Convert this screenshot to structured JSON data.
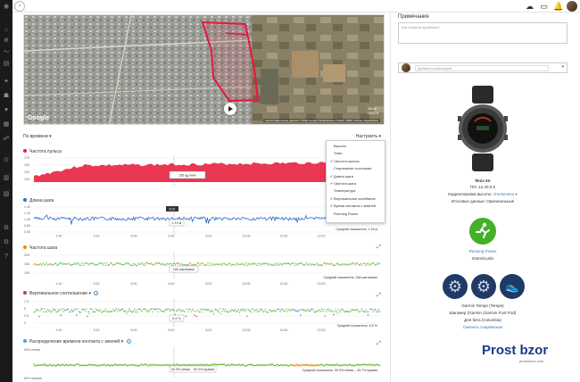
{
  "topbar": {
    "icons": [
      "back-icon",
      "upload-icon",
      "notifications-icon",
      "calendar-icon",
      "user-icon"
    ]
  },
  "sidebar": {
    "icons": [
      "logo-icon",
      "dashboard-icon",
      "activities-icon",
      "insights-icon",
      "reports-icon",
      "health-icon",
      "training-icon",
      "calendar-icon",
      "connections-icon",
      "gear-icon",
      "goals-icon",
      "badges-icon",
      "settings-icon"
    ]
  },
  "map": {
    "google_label": "Google",
    "credit": "Картографические данные © 2018 Google Изображения ©2018, CNES / Airbus, DigitalGlobe",
    "scale_top": "200 м",
    "scale_bottom": "1000 ft"
  },
  "controls": {
    "view_by": "По времени",
    "customize": "Настроить"
  },
  "dropdown": {
    "items": [
      {
        "label": "Высота",
        "checked": false
      },
      {
        "label": "Темп",
        "checked": false
      },
      {
        "label": "Частота пульса",
        "checked": true
      },
      {
        "label": "Спортивное состояние",
        "checked": false
      },
      {
        "label": "Длина шага",
        "checked": true
      },
      {
        "label": "Частота шага",
        "checked": true
      },
      {
        "label": "Температура",
        "checked": false
      },
      {
        "label": "Вертикальное колебание",
        "checked": true
      },
      {
        "label": "Время контакта с землей",
        "checked": true
      },
      {
        "label": "Running Power",
        "checked": false
      }
    ]
  },
  "charts": {
    "heart_rate": {
      "title": "Частота пульса",
      "y_ticks": [
        "175",
        "150",
        "125",
        "100"
      ],
      "tooltip": "156 уд./мин",
      "average": "Средний"
    },
    "stride_length": {
      "title": "Длина шага",
      "y_ticks": [
        "1.40",
        "1.20",
        "1.00",
        "0.80",
        "0.60"
      ],
      "tooltip": "1.19 м",
      "time_badge": "6:31",
      "average": "Средний показатель: 1.16 м"
    },
    "cadence": {
      "title": "Частота шага",
      "y_ticks": [
        "200",
        "150",
        "100"
      ],
      "tooltip": "168 шагов/мин",
      "average": "Средний показатель: 166 шагов/мин"
    },
    "vertical_ratio": {
      "title": "Вертикальное соотношение",
      "y_ticks": [
        "7.5",
        "5",
        "2.5",
        "0"
      ],
      "tooltip": "6.4 %",
      "average": "Средний показатель: 6.5 %"
    },
    "gct_balance": {
      "title": "Распределение времени контакта с землей",
      "y_top": "60% левая",
      "y_bottom": "60% правая",
      "tooltip_left": "50.0% левая",
      "tooltip_right": "50.0% правая",
      "average": "Средний показатель: 50.3% левая – 49.7% правая"
    },
    "x_ticks": [
      "1:40",
      "3:20",
      "5:00",
      "6:40",
      "8:20",
      "10:00",
      "11:40",
      "13:20"
    ]
  },
  "notes": {
    "title": "Примечания",
    "placeholder": "Как прошла пробежка?"
  },
  "comment": {
    "placeholder": "Добавить комментарий"
  },
  "device": {
    "name": "fēnix 5X",
    "software": "ПО: 12.40.0.0",
    "altitude_label": "Корректировка высоты:",
    "altitude_value": "Отключено ▾",
    "totals_label": "Итоговые данные:",
    "totals_value": "Оригинальные"
  },
  "running_power": {
    "label": "Running Power",
    "vendor": "GarminLabs"
  },
  "sensors": {
    "tempe": "Garmin Tempe (Tempe)",
    "foot_pod": "Шагомер (Garmin (Garmin Foot Pod)",
    "shoes": "Для бега (Columbia)",
    "change_gear": "Сменить снаряжение"
  },
  "watermark": {
    "main": "Prost bzor",
    "sub": "prostobzor.com"
  },
  "colors": {
    "heart": "#e8213f",
    "stride": "#2e6bc7",
    "cadence_good": "#6cbf3a",
    "accent_blue": "#2f7fc1",
    "route": "#e5173f",
    "gear_bg": "#1f3a66",
    "rp_green": "#43b02a"
  }
}
